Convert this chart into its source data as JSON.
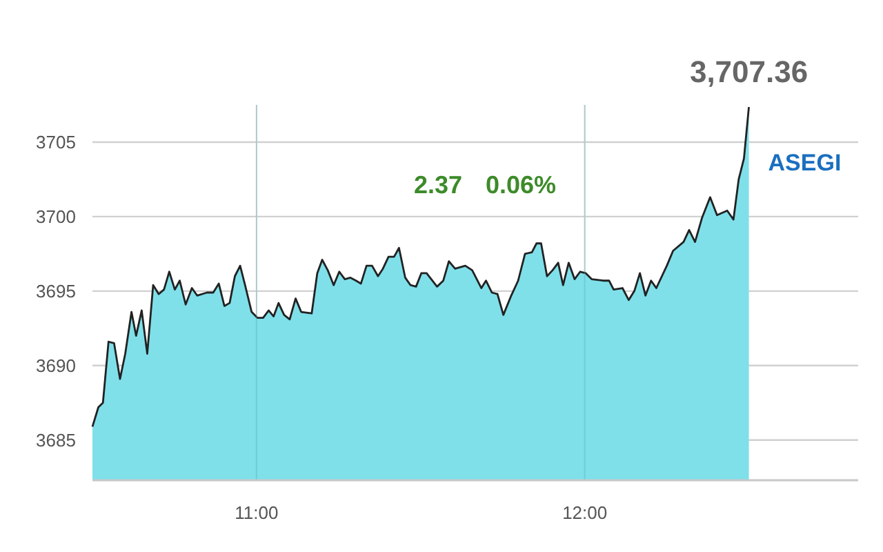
{
  "chart_data": {
    "type": "area",
    "x": [
      10.5,
      10.518,
      10.532,
      10.549,
      10.566,
      10.584,
      10.6,
      10.619,
      10.633,
      10.65,
      10.667,
      10.685,
      10.702,
      10.718,
      10.734,
      10.751,
      10.766,
      10.784,
      10.803,
      10.819,
      10.849,
      10.868,
      10.885,
      10.902,
      10.918,
      10.934,
      10.95,
      10.965,
      10.985,
      11.003,
      11.02,
      11.037,
      11.052,
      11.067,
      11.084,
      11.101,
      11.119,
      11.136,
      11.168,
      11.185,
      11.2,
      11.217,
      11.235,
      11.252,
      11.269,
      11.286,
      11.303,
      11.318,
      11.335,
      11.352,
      11.37,
      11.385,
      11.402,
      11.419,
      11.434,
      11.453,
      11.469,
      11.486,
      11.502,
      11.518,
      11.55,
      11.569,
      11.586,
      11.605,
      11.636,
      11.657,
      11.685,
      11.699,
      11.717,
      11.734,
      11.752,
      11.776,
      11.797,
      11.818,
      11.839,
      11.853,
      11.867,
      11.885,
      11.902,
      11.919,
      11.934,
      11.951,
      11.969,
      11.986,
      12.003,
      12.021,
      12.056,
      12.074,
      12.088,
      12.115,
      12.134,
      12.151,
      12.168,
      12.185,
      12.202,
      12.218,
      12.25,
      12.269,
      12.301,
      12.318,
      12.336,
      12.357,
      12.382,
      12.403,
      12.434,
      12.453,
      12.469,
      12.485,
      12.5
    ],
    "series": [
      {
        "name": "ASEGI",
        "color": "#7fe0ea",
        "values": [
          3685.9,
          3687.2,
          3687.5,
          3691.6,
          3691.5,
          3689.1,
          3690.8,
          3693.6,
          3692.0,
          3693.7,
          3690.8,
          3695.4,
          3694.8,
          3695.1,
          3696.3,
          3695.1,
          3695.7,
          3694.1,
          3695.2,
          3694.7,
          3694.9,
          3694.9,
          3695.5,
          3694.0,
          3694.2,
          3696.0,
          3696.7,
          3695.4,
          3693.6,
          3693.2,
          3693.2,
          3693.7,
          3693.3,
          3694.2,
          3693.4,
          3693.1,
          3694.5,
          3693.6,
          3693.5,
          3696.2,
          3697.1,
          3696.4,
          3695.4,
          3696.3,
          3695.8,
          3695.9,
          3695.7,
          3695.5,
          3696.7,
          3696.7,
          3696.0,
          3696.5,
          3697.3,
          3697.3,
          3697.9,
          3695.9,
          3695.4,
          3695.3,
          3696.2,
          3696.2,
          3695.3,
          3695.7,
          3697.0,
          3696.5,
          3696.7,
          3696.4,
          3695.2,
          3695.7,
          3694.9,
          3694.8,
          3693.4,
          3694.7,
          3695.7,
          3697.5,
          3697.6,
          3698.2,
          3698.2,
          3696.0,
          3696.4,
          3696.9,
          3695.4,
          3696.9,
          3695.8,
          3696.3,
          3696.2,
          3695.8,
          3695.7,
          3695.7,
          3695.1,
          3695.2,
          3694.4,
          3695.0,
          3696.2,
          3694.7,
          3695.7,
          3695.2,
          3696.7,
          3697.7,
          3698.3,
          3699.1,
          3698.3,
          3699.9,
          3701.3,
          3700.1,
          3700.4,
          3699.8,
          3702.5,
          3703.9,
          3707.36
        ]
      }
    ],
    "xlim": [
      10.5,
      12.833
    ],
    "ylim": [
      3682.3,
      3707.5
    ],
    "xticks": [
      {
        "value": 11,
        "label": "11:00"
      },
      {
        "value": 12,
        "label": "12:00"
      }
    ],
    "yticks": [
      3685,
      3690,
      3695,
      3700,
      3705
    ],
    "grid": true,
    "annotations": [
      {
        "text": "3,707.36",
        "x": 12.5,
        "y": 3707.36
      },
      "2.37",
      "0.06%"
    ]
  }
}
